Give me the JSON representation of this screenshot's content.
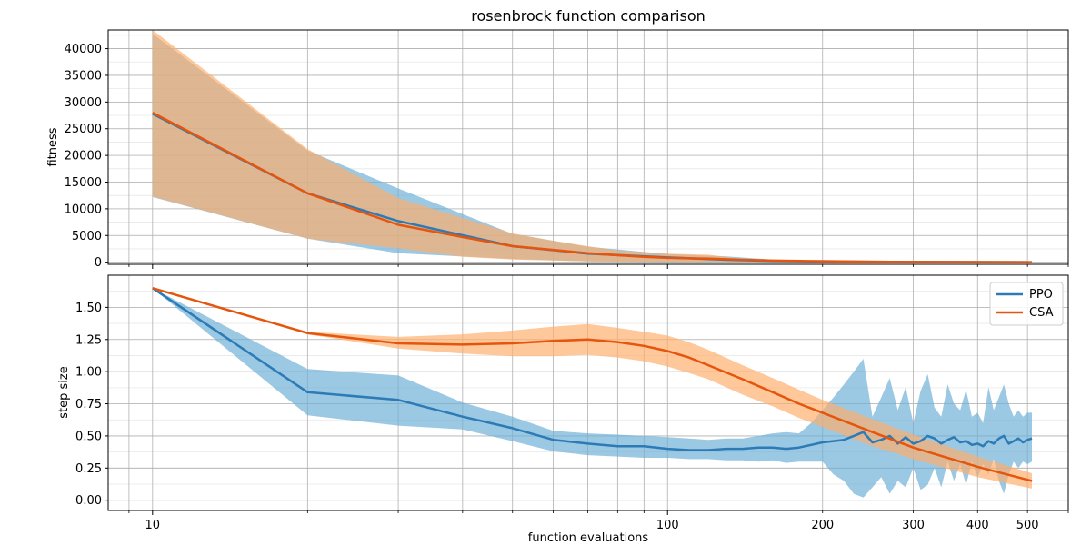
{
  "title": "rosenbrock function comparison",
  "chart_data": [
    {
      "type": "line",
      "title": "rosenbrock function comparison",
      "xlabel": "",
      "ylabel": "fitness",
      "xscale": "log",
      "xlim": [
        8.2,
        600
      ],
      "ylim": [
        -400,
        43500
      ],
      "y_ticks": [
        0,
        5000,
        10000,
        15000,
        20000,
        25000,
        30000,
        35000,
        40000
      ],
      "y_tick_labels": [
        "0",
        "5000",
        "10000",
        "15000",
        "20000",
        "25000",
        "30000",
        "35000",
        "40000"
      ],
      "grid": true,
      "series": [
        {
          "name": "PPO",
          "color": "#2c7bb6",
          "band_color": "#6baed6",
          "x": [
            10,
            20,
            30,
            50,
            70,
            100,
            130,
            160,
            200,
            300,
            500
          ],
          "mean": [
            27800,
            12900,
            7700,
            3000,
            1600,
            900,
            450,
            250,
            120,
            40,
            10
          ],
          "lower": [
            12200,
            4400,
            1700,
            600,
            150,
            30,
            0,
            0,
            0,
            0,
            0
          ],
          "upper": [
            42800,
            20900,
            13800,
            5300,
            2900,
            1500,
            1100,
            500,
            300,
            100,
            20
          ]
        },
        {
          "name": "CSA",
          "color": "#e6550d",
          "band_color": "#fdae6b",
          "x": [
            10,
            20,
            30,
            40,
            50,
            60,
            70,
            80,
            90,
            100,
            120,
            140,
            160,
            200,
            250,
            300,
            400,
            510
          ],
          "mean": [
            28000,
            12900,
            7000,
            4700,
            3000,
            2300,
            1700,
            1300,
            1000,
            800,
            650,
            450,
            300,
            200,
            100,
            50,
            20,
            10
          ],
          "lower": [
            12300,
            4400,
            2600,
            1000,
            500,
            300,
            150,
            100,
            80,
            60,
            40,
            20,
            10,
            5,
            0,
            0,
            0,
            0
          ],
          "upper": [
            43500,
            21200,
            12000,
            8300,
            5400,
            4000,
            3000,
            2200,
            1900,
            1600,
            1400,
            600,
            450,
            300,
            200,
            100,
            50,
            20
          ]
        }
      ]
    },
    {
      "type": "line",
      "title": "",
      "xlabel": "function evaluations",
      "ylabel": "step size",
      "xscale": "log",
      "xlim": [
        8.2,
        600
      ],
      "ylim": [
        -0.08,
        1.75
      ],
      "y_ticks": [
        0.0,
        0.25,
        0.5,
        0.75,
        1.0,
        1.25,
        1.5
      ],
      "y_tick_labels": [
        "0.00",
        "0.25",
        "0.50",
        "0.75",
        "1.00",
        "1.25",
        "1.50"
      ],
      "x_ticks": [
        10,
        100,
        200,
        300,
        400,
        500
      ],
      "x_tick_labels": [
        "10",
        "100",
        "200",
        "300",
        "400",
        "500"
      ],
      "grid": true,
      "legend": "top-right",
      "series": [
        {
          "name": "PPO",
          "color": "#2c7bb6",
          "band_color": "#6baed6",
          "x": [
            10,
            20,
            30,
            40,
            50,
            60,
            70,
            80,
            90,
            100,
            110,
            120,
            130,
            140,
            150,
            160,
            170,
            180,
            190,
            200,
            210,
            220,
            230,
            240,
            250,
            260,
            270,
            280,
            290,
            300,
            310,
            320,
            330,
            340,
            350,
            360,
            370,
            380,
            390,
            400,
            410,
            420,
            430,
            440,
            450,
            460,
            470,
            480,
            490,
            500,
            510
          ],
          "mean": [
            1.65,
            0.84,
            0.78,
            0.65,
            0.56,
            0.47,
            0.44,
            0.42,
            0.42,
            0.4,
            0.39,
            0.39,
            0.4,
            0.4,
            0.41,
            0.41,
            0.4,
            0.41,
            0.43,
            0.45,
            0.46,
            0.47,
            0.5,
            0.53,
            0.45,
            0.47,
            0.5,
            0.44,
            0.49,
            0.44,
            0.46,
            0.5,
            0.48,
            0.44,
            0.47,
            0.49,
            0.45,
            0.46,
            0.43,
            0.44,
            0.42,
            0.46,
            0.44,
            0.48,
            0.5,
            0.44,
            0.46,
            0.48,
            0.45,
            0.47,
            0.48
          ],
          "lower": [
            1.65,
            0.66,
            0.58,
            0.55,
            0.46,
            0.38,
            0.35,
            0.34,
            0.33,
            0.33,
            0.32,
            0.32,
            0.31,
            0.31,
            0.3,
            0.31,
            0.29,
            0.3,
            0.3,
            0.3,
            0.2,
            0.15,
            0.05,
            0.02,
            0.1,
            0.18,
            0.05,
            0.15,
            0.1,
            0.25,
            0.08,
            0.12,
            0.25,
            0.1,
            0.3,
            0.15,
            0.28,
            0.12,
            0.3,
            0.18,
            0.28,
            0.2,
            0.32,
            0.15,
            0.05,
            0.2,
            0.3,
            0.25,
            0.3,
            0.28,
            0.3
          ],
          "upper": [
            1.65,
            1.02,
            0.97,
            0.76,
            0.65,
            0.54,
            0.52,
            0.51,
            0.5,
            0.49,
            0.48,
            0.47,
            0.48,
            0.48,
            0.5,
            0.52,
            0.53,
            0.52,
            0.6,
            0.7,
            0.8,
            0.9,
            1.0,
            1.1,
            0.65,
            0.8,
            0.95,
            0.7,
            0.88,
            0.6,
            0.85,
            0.98,
            0.72,
            0.65,
            0.9,
            0.75,
            0.7,
            0.86,
            0.65,
            0.68,
            0.6,
            0.88,
            0.7,
            0.8,
            0.9,
            0.75,
            0.65,
            0.7,
            0.65,
            0.68,
            0.68
          ]
        },
        {
          "name": "CSA",
          "color": "#e6550d",
          "band_color": "#fdae6b",
          "x": [
            10,
            20,
            30,
            40,
            50,
            60,
            70,
            80,
            90,
            100,
            110,
            120,
            140,
            160,
            180,
            200,
            250,
            300,
            400,
            510
          ],
          "mean": [
            1.65,
            1.3,
            1.22,
            1.21,
            1.22,
            1.24,
            1.25,
            1.23,
            1.2,
            1.16,
            1.11,
            1.05,
            0.94,
            0.84,
            0.75,
            0.68,
            0.53,
            0.41,
            0.26,
            0.15
          ],
          "lower": [
            1.65,
            1.29,
            1.18,
            1.14,
            1.12,
            1.12,
            1.13,
            1.11,
            1.08,
            1.04,
            0.99,
            0.94,
            0.82,
            0.73,
            0.64,
            0.57,
            0.42,
            0.32,
            0.18,
            0.09
          ],
          "upper": [
            1.65,
            1.31,
            1.27,
            1.29,
            1.32,
            1.35,
            1.37,
            1.34,
            1.31,
            1.28,
            1.23,
            1.17,
            1.05,
            0.95,
            0.86,
            0.78,
            0.63,
            0.51,
            0.34,
            0.21
          ]
        }
      ]
    }
  ]
}
